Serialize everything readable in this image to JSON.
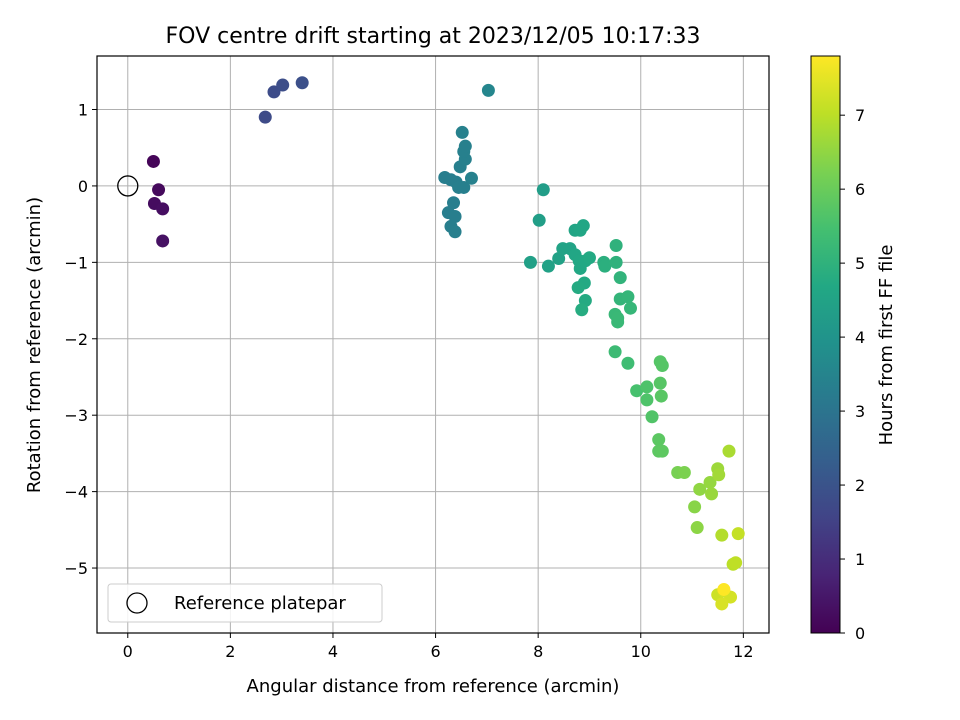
{
  "chart_data": {
    "type": "scatter",
    "title": "FOV centre drift starting at 2023/12/05 10:17:33",
    "xlabel": "Angular distance from reference (arcmin)",
    "ylabel": "Rotation from reference (arcmin)",
    "xlim": [
      -0.6,
      12.5
    ],
    "ylim": [
      -5.85,
      1.7
    ],
    "xticks": [
      0,
      2,
      4,
      6,
      8,
      10,
      12
    ],
    "yticks": [
      -5,
      -4,
      -3,
      -2,
      -1,
      0,
      1
    ],
    "grid": true,
    "legend": {
      "position": "lower-left",
      "entries": [
        "Reference platepar"
      ]
    },
    "reference_point": {
      "x": 0,
      "y": 0
    },
    "colorbar": {
      "label": "Hours from first FF file",
      "colormap": "viridis",
      "range": [
        0,
        7.8
      ],
      "ticks": [
        0,
        1,
        2,
        3,
        4,
        5,
        6,
        7
      ]
    },
    "series": [
      {
        "points": [
          {
            "x": 0.5,
            "y": 0.32,
            "h": 0.1
          },
          {
            "x": 0.6,
            "y": -0.05,
            "h": 0.2
          },
          {
            "x": 0.52,
            "y": -0.23,
            "h": 0.25
          },
          {
            "x": 0.68,
            "y": -0.3,
            "h": 0.3
          },
          {
            "x": 0.68,
            "y": -0.72,
            "h": 0.35
          },
          {
            "x": 2.68,
            "y": 0.9,
            "h": 1.75
          },
          {
            "x": 2.85,
            "y": 1.23,
            "h": 1.8
          },
          {
            "x": 3.02,
            "y": 1.32,
            "h": 1.85
          },
          {
            "x": 3.4,
            "y": 1.35,
            "h": 1.9
          },
          {
            "x": 6.18,
            "y": 0.11,
            "h": 3.3
          },
          {
            "x": 6.3,
            "y": 0.08,
            "h": 3.3
          },
          {
            "x": 6.4,
            "y": 0.05,
            "h": 3.32
          },
          {
            "x": 6.45,
            "y": -0.02,
            "h": 3.33
          },
          {
            "x": 6.55,
            "y": -0.02,
            "h": 3.34
          },
          {
            "x": 6.48,
            "y": 0.25,
            "h": 3.35
          },
          {
            "x": 6.58,
            "y": 0.35,
            "h": 3.36
          },
          {
            "x": 6.55,
            "y": 0.45,
            "h": 3.37
          },
          {
            "x": 6.58,
            "y": 0.52,
            "h": 3.38
          },
          {
            "x": 6.52,
            "y": 0.7,
            "h": 3.39
          },
          {
            "x": 6.7,
            "y": 0.1,
            "h": 3.4
          },
          {
            "x": 6.25,
            "y": -0.35,
            "h": 3.31
          },
          {
            "x": 6.35,
            "y": -0.22,
            "h": 3.31
          },
          {
            "x": 6.38,
            "y": -0.4,
            "h": 3.32
          },
          {
            "x": 6.3,
            "y": -0.53,
            "h": 3.32
          },
          {
            "x": 6.38,
            "y": -0.6,
            "h": 3.33
          },
          {
            "x": 7.03,
            "y": 1.25,
            "h": 3.55
          },
          {
            "x": 8.1,
            "y": -0.05,
            "h": 4.3
          },
          {
            "x": 8.02,
            "y": -0.45,
            "h": 4.35
          },
          {
            "x": 7.85,
            "y": -1.0,
            "h": 4.4
          },
          {
            "x": 8.2,
            "y": -1.05,
            "h": 4.45
          },
          {
            "x": 8.4,
            "y": -0.95,
            "h": 4.45
          },
          {
            "x": 8.48,
            "y": -0.82,
            "h": 4.5
          },
          {
            "x": 8.62,
            "y": -0.82,
            "h": 4.5
          },
          {
            "x": 8.72,
            "y": -0.58,
            "h": 4.55
          },
          {
            "x": 8.82,
            "y": -0.58,
            "h": 4.6
          },
          {
            "x": 8.88,
            "y": -0.52,
            "h": 4.6
          },
          {
            "x": 8.72,
            "y": -0.9,
            "h": 4.62
          },
          {
            "x": 8.8,
            "y": -0.98,
            "h": 4.64
          },
          {
            "x": 8.82,
            "y": -1.08,
            "h": 4.66
          },
          {
            "x": 8.92,
            "y": -0.98,
            "h": 4.68
          },
          {
            "x": 9.0,
            "y": -0.94,
            "h": 4.7
          },
          {
            "x": 8.9,
            "y": -1.27,
            "h": 4.72
          },
          {
            "x": 8.78,
            "y": -1.33,
            "h": 4.74
          },
          {
            "x": 8.92,
            "y": -1.5,
            "h": 4.76
          },
          {
            "x": 8.85,
            "y": -1.62,
            "h": 4.8
          },
          {
            "x": 9.28,
            "y": -1.0,
            "h": 4.9
          },
          {
            "x": 9.3,
            "y": -1.05,
            "h": 4.92
          },
          {
            "x": 9.52,
            "y": -0.78,
            "h": 5.0
          },
          {
            "x": 9.52,
            "y": -1.0,
            "h": 5.0
          },
          {
            "x": 9.6,
            "y": -1.2,
            "h": 5.05
          },
          {
            "x": 9.6,
            "y": -1.48,
            "h": 5.1
          },
          {
            "x": 9.75,
            "y": -1.45,
            "h": 5.12
          },
          {
            "x": 9.8,
            "y": -1.6,
            "h": 5.15
          },
          {
            "x": 9.5,
            "y": -1.68,
            "h": 5.2
          },
          {
            "x": 9.55,
            "y": -1.78,
            "h": 5.22
          },
          {
            "x": 9.55,
            "y": -1.73,
            "h": 5.22
          },
          {
            "x": 9.5,
            "y": -2.17,
            "h": 5.3
          },
          {
            "x": 9.75,
            "y": -2.32,
            "h": 5.35
          },
          {
            "x": 9.92,
            "y": -2.68,
            "h": 5.5
          },
          {
            "x": 10.12,
            "y": -2.63,
            "h": 5.6
          },
          {
            "x": 10.12,
            "y": -2.8,
            "h": 5.62
          },
          {
            "x": 10.22,
            "y": -3.02,
            "h": 5.65
          },
          {
            "x": 10.38,
            "y": -2.3,
            "h": 5.7
          },
          {
            "x": 10.42,
            "y": -2.35,
            "h": 5.72
          },
          {
            "x": 10.38,
            "y": -2.58,
            "h": 5.74
          },
          {
            "x": 10.4,
            "y": -2.75,
            "h": 5.76
          },
          {
            "x": 10.35,
            "y": -3.32,
            "h": 5.8
          },
          {
            "x": 10.35,
            "y": -3.47,
            "h": 5.82
          },
          {
            "x": 10.42,
            "y": -3.47,
            "h": 5.84
          },
          {
            "x": 10.72,
            "y": -3.75,
            "h": 6.2
          },
          {
            "x": 10.85,
            "y": -3.75,
            "h": 6.25
          },
          {
            "x": 11.05,
            "y": -4.2,
            "h": 6.4
          },
          {
            "x": 11.1,
            "y": -4.47,
            "h": 6.45
          },
          {
            "x": 11.15,
            "y": -3.97,
            "h": 6.5
          },
          {
            "x": 11.35,
            "y": -3.88,
            "h": 6.55
          },
          {
            "x": 11.38,
            "y": -4.03,
            "h": 6.6
          },
          {
            "x": 11.5,
            "y": -3.7,
            "h": 6.65
          },
          {
            "x": 11.52,
            "y": -3.78,
            "h": 6.7
          },
          {
            "x": 11.72,
            "y": -3.47,
            "h": 6.8
          },
          {
            "x": 11.58,
            "y": -4.57,
            "h": 6.9
          },
          {
            "x": 11.8,
            "y": -4.95,
            "h": 7.0
          },
          {
            "x": 11.85,
            "y": -4.93,
            "h": 7.05
          },
          {
            "x": 11.9,
            "y": -4.55,
            "h": 7.1
          },
          {
            "x": 11.5,
            "y": -5.35,
            "h": 7.2
          },
          {
            "x": 11.62,
            "y": -5.3,
            "h": 7.3
          },
          {
            "x": 11.75,
            "y": -5.38,
            "h": 7.3
          },
          {
            "x": 11.58,
            "y": -5.47,
            "h": 7.35
          },
          {
            "x": 11.62,
            "y": -5.28,
            "h": 7.8
          }
        ]
      }
    ]
  }
}
